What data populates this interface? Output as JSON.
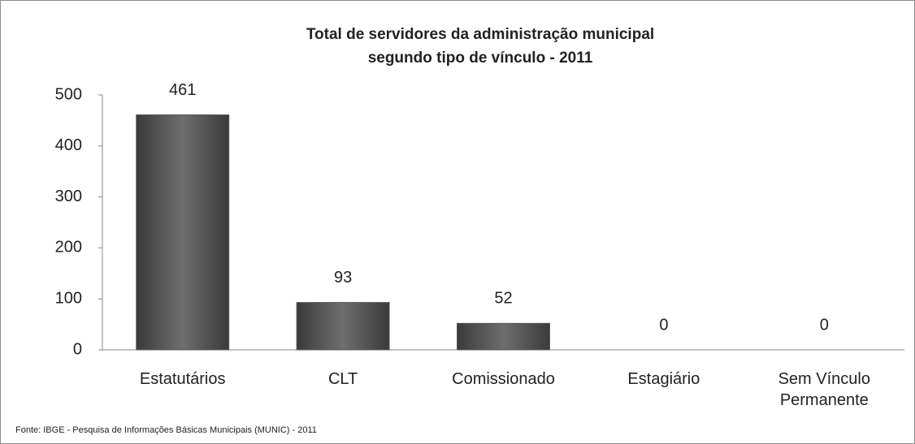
{
  "chart_data": {
    "type": "bar",
    "title": [
      "Total de servidores da administração municipal",
      "segundo tipo de vínculo - 2011"
    ],
    "categories": [
      "Estatutários",
      "CLT",
      "Comissionado",
      "Estagiário",
      "Sem Vínculo Permanente"
    ],
    "values": [
      461,
      93,
      52,
      0,
      0
    ],
    "color": "#5a5a5a",
    "ylim": [
      0,
      500
    ],
    "yticks": [
      0,
      100,
      200,
      300,
      400,
      500
    ],
    "grid": false,
    "source": "Fonte:  IBGE - Pesquisa de Informações Básicas Municipais (MUNIC) - 2011"
  }
}
